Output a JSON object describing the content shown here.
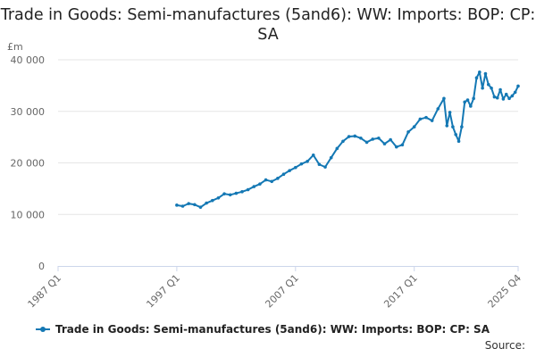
{
  "chart_data": {
    "type": "line",
    "title": "Trade in Goods: Semi-manufactures (5and6): WW: Imports: BOP: CP: SA",
    "ylabel": "£m",
    "xlabel": "",
    "ylim": [
      0,
      40000
    ],
    "yticks": [
      "0",
      "10 000",
      "20 000",
      "30 000",
      "40 000"
    ],
    "xticks": [
      "1987 Q1",
      "1997 Q1",
      "2007 Q1",
      "2017 Q1",
      "2025 Q4"
    ],
    "grid": "horizontal",
    "legend_position": "bottom",
    "series": [
      {
        "name": "Trade in Goods: Semi-manufactures (5and6): WW: Imports: BOP: CP: SA",
        "color": "#1478b4",
        "points": [
          [
            "1997 Q1",
            11800
          ],
          [
            "1997 Q3",
            11600
          ],
          [
            "1998 Q1",
            12100
          ],
          [
            "1998 Q3",
            11900
          ],
          [
            "1999 Q1",
            11400
          ],
          [
            "1999 Q3",
            12200
          ],
          [
            "2000 Q1",
            12700
          ],
          [
            "2000 Q3",
            13200
          ],
          [
            "2001 Q1",
            14000
          ],
          [
            "2001 Q3",
            13800
          ],
          [
            "2002 Q1",
            14100
          ],
          [
            "2002 Q3",
            14400
          ],
          [
            "2003 Q1",
            14800
          ],
          [
            "2003 Q3",
            15400
          ],
          [
            "2004 Q1",
            15900
          ],
          [
            "2004 Q3",
            16700
          ],
          [
            "2005 Q1",
            16400
          ],
          [
            "2005 Q3",
            17000
          ],
          [
            "2006 Q1",
            17800
          ],
          [
            "2006 Q3",
            18500
          ],
          [
            "2007 Q1",
            19100
          ],
          [
            "2007 Q3",
            19800
          ],
          [
            "2008 Q1",
            20300
          ],
          [
            "2008 Q3",
            21500
          ],
          [
            "2009 Q1",
            19700
          ],
          [
            "2009 Q3",
            19200
          ],
          [
            "2010 Q1",
            21000
          ],
          [
            "2010 Q3",
            22800
          ],
          [
            "2011 Q1",
            24200
          ],
          [
            "2011 Q3",
            25100
          ],
          [
            "2012 Q1",
            25200
          ],
          [
            "2012 Q3",
            24800
          ],
          [
            "2013 Q1",
            24000
          ],
          [
            "2013 Q3",
            24600
          ],
          [
            "2014 Q1",
            24800
          ],
          [
            "2014 Q3",
            23700
          ],
          [
            "2015 Q1",
            24500
          ],
          [
            "2015 Q3",
            23100
          ],
          [
            "2016 Q1",
            23500
          ],
          [
            "2016 Q3",
            26000
          ],
          [
            "2017 Q1",
            27000
          ],
          [
            "2017 Q3",
            28500
          ],
          [
            "2018 Q1",
            28800
          ],
          [
            "2018 Q3",
            28200
          ],
          [
            "2019 Q1",
            30500
          ],
          [
            "2019 Q3",
            32500
          ],
          [
            "2019 Q4",
            27200
          ],
          [
            "2020 Q1",
            29800
          ],
          [
            "2020 Q2",
            27000
          ],
          [
            "2020 Q3",
            25500
          ],
          [
            "2020 Q4",
            24200
          ],
          [
            "2021 Q1",
            27000
          ],
          [
            "2021 Q2",
            31800
          ],
          [
            "2021 Q3",
            32200
          ],
          [
            "2021 Q4",
            31000
          ],
          [
            "2022 Q1",
            32500
          ],
          [
            "2022 Q2",
            36500
          ],
          [
            "2022 Q3",
            37600
          ],
          [
            "2022 Q4",
            34500
          ],
          [
            "2023 Q1",
            37300
          ],
          [
            "2023 Q2",
            35200
          ],
          [
            "2023 Q3",
            34500
          ],
          [
            "2023 Q4",
            32800
          ],
          [
            "2024 Q1",
            32600
          ],
          [
            "2024 Q2",
            34200
          ],
          [
            "2024 Q3",
            32400
          ],
          [
            "2024 Q4",
            33300
          ],
          [
            "2025 Q1",
            32500
          ],
          [
            "2025 Q2",
            33000
          ],
          [
            "2025 Q3",
            33700
          ],
          [
            "2025 Q4",
            34900
          ]
        ]
      }
    ],
    "source": "Source:"
  }
}
